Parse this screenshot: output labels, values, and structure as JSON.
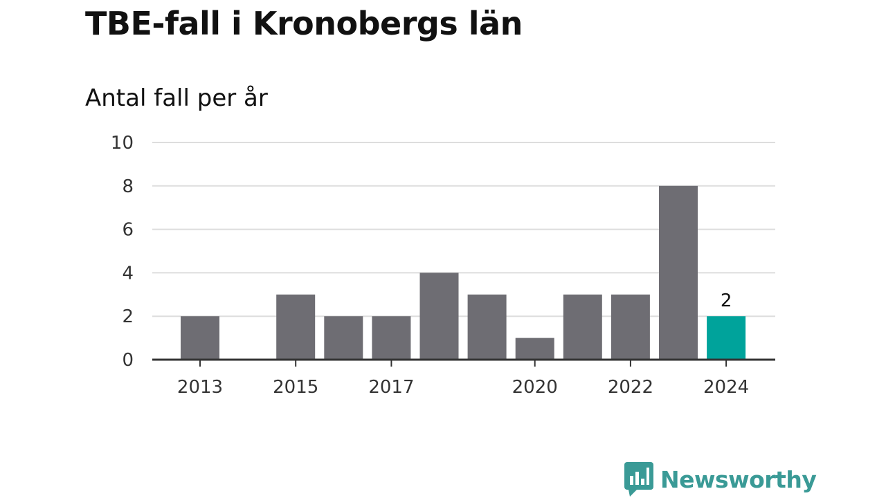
{
  "title": "TBE-fall i Kronobergs län",
  "subtitle": "Antal fall per år",
  "brand": {
    "name": "Newsworthy",
    "logo_icon": "bar-chart-speech-bubble-icon",
    "color": "#3a9a96"
  },
  "colors": {
    "bar": "#6e6d73",
    "highlight": "#00a39b",
    "grid": "#dddddd",
    "axis": "#333333"
  },
  "chart_data": {
    "type": "bar",
    "categories": [
      "2013",
      "2014",
      "2015",
      "2016",
      "2017",
      "2018",
      "2019",
      "2020",
      "2021",
      "2022",
      "2023",
      "2024"
    ],
    "values": [
      2,
      0,
      3,
      2,
      2,
      4,
      3,
      1,
      3,
      3,
      8,
      2
    ],
    "tick_labels": [
      "2013",
      "2015",
      "2017",
      "2020",
      "2022",
      "2024"
    ],
    "y_ticks": [
      0,
      2,
      4,
      6,
      8,
      10
    ],
    "ylim": [
      0,
      10
    ],
    "grid": true,
    "highlight_category": "2024",
    "data_labels": [
      {
        "category": "2024",
        "text": "2"
      }
    ]
  }
}
